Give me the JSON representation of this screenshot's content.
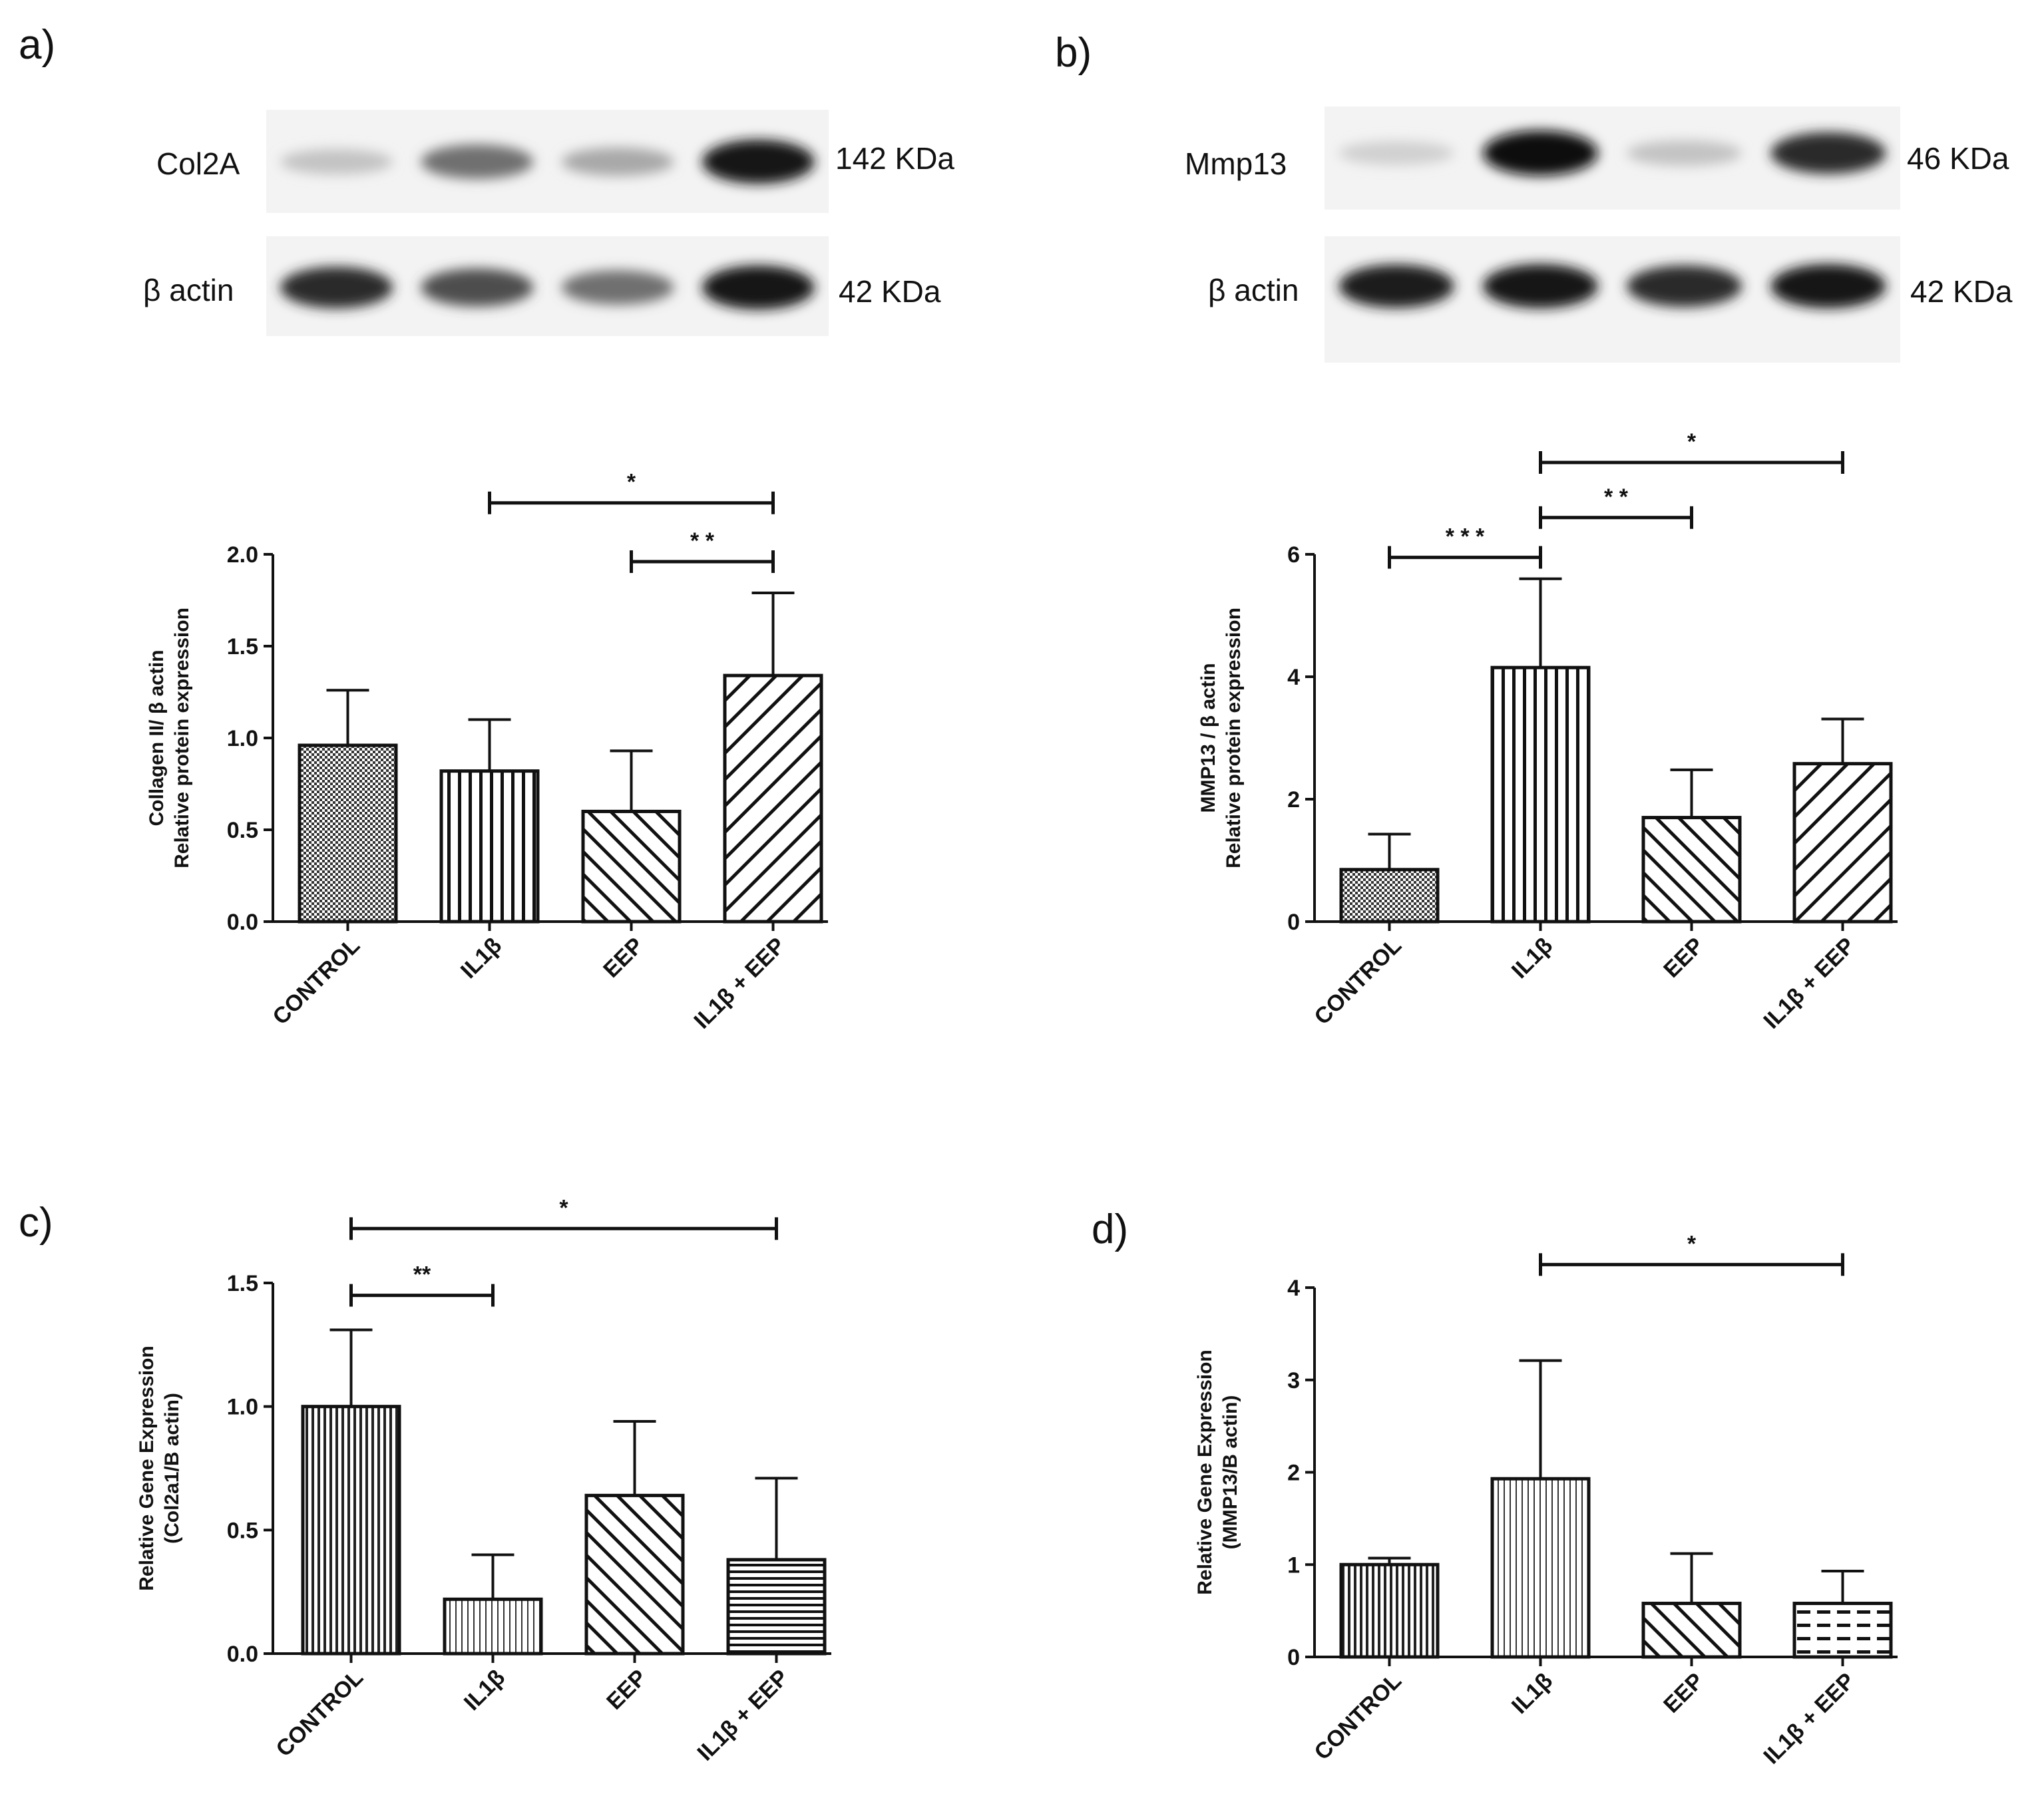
{
  "panels": {
    "a": {
      "letter": "a)"
    },
    "b": {
      "letter": "b)"
    },
    "c": {
      "letter": "c)"
    },
    "d": {
      "letter": "d)"
    }
  },
  "blots": {
    "a": {
      "rows": [
        {
          "label": "Col2A",
          "kda": "142 KDa",
          "intensities": [
            0.18,
            0.55,
            0.3,
            0.95
          ]
        },
        {
          "label": "β actin",
          "kda": "42 KDa",
          "intensities": [
            0.85,
            0.7,
            0.55,
            0.95
          ]
        }
      ]
    },
    "b": {
      "rows": [
        {
          "label": "Mmp13",
          "kda": "46 KDa",
          "intensities": [
            0.12,
            1.0,
            0.18,
            0.85
          ]
        },
        {
          "label": "β actin",
          "kda": "42 KDa",
          "intensities": [
            0.92,
            0.95,
            0.85,
            0.95
          ]
        }
      ]
    }
  },
  "chart_data": [
    {
      "panel": "a",
      "type": "bar",
      "categories": [
        "CONTROL",
        "IL1β",
        "EEP",
        "IL1β + EEP"
      ],
      "values": [
        0.96,
        0.82,
        0.6,
        1.34
      ],
      "errors": [
        0.3,
        0.28,
        0.33,
        0.45
      ],
      "patterns": [
        "checker",
        "vertical",
        "diag-right",
        "diag-left"
      ],
      "ylabel_lines": [
        "Collagen II/ β actin",
        "Relative protein expression"
      ],
      "ylim": [
        0,
        2.0
      ],
      "yticks": [
        0.0,
        0.5,
        1.0,
        1.5,
        2.0
      ],
      "tick_labels": [
        "0.0",
        "0.5",
        "1.0",
        "1.5",
        "2.0"
      ],
      "significance": [
        {
          "from": 1,
          "to": 3,
          "label": "*",
          "y": 2.28
        },
        {
          "from": 2,
          "to": 3,
          "label": "* *",
          "y": 1.96
        }
      ]
    },
    {
      "panel": "b",
      "type": "bar",
      "categories": [
        "CONTROL",
        "IL1β",
        "EEP",
        "IL1β + EEP"
      ],
      "values": [
        0.85,
        4.15,
        1.7,
        2.58
      ],
      "errors": [
        0.58,
        1.45,
        0.78,
        0.73
      ],
      "patterns": [
        "checker",
        "vertical",
        "diag-right",
        "diag-left"
      ],
      "ylabel_lines": [
        "MMP13 / β actin",
        "Relative protein expression"
      ],
      "ylim": [
        0,
        6
      ],
      "yticks": [
        0,
        2,
        4,
        6
      ],
      "tick_labels": [
        "0",
        "2",
        "4",
        "6"
      ],
      "significance": [
        {
          "from": 1,
          "to": 3,
          "label": "*",
          "y": 7.5
        },
        {
          "from": 1,
          "to": 2,
          "label": "* *",
          "y": 6.6
        },
        {
          "from": 0,
          "to": 1,
          "label": "* * *",
          "y": 5.95
        }
      ]
    },
    {
      "panel": "c",
      "type": "bar",
      "categories": [
        "CONTROL",
        "IL1β",
        "EEP",
        "IL1β + EEP"
      ],
      "values": [
        1.0,
        0.22,
        0.64,
        0.38
      ],
      "errors": [
        0.31,
        0.18,
        0.3,
        0.33
      ],
      "patterns": [
        "dense-vertical",
        "fine-vertical",
        "diag-right",
        "horizontal"
      ],
      "ylabel_lines": [
        "Relative Gene Expression",
        "(Col2a1/B actin)"
      ],
      "ylim": [
        0,
        1.5
      ],
      "yticks": [
        0.0,
        0.5,
        1.0,
        1.5
      ],
      "tick_labels": [
        "0.0",
        "0.5",
        "1.0",
        "1.5"
      ],
      "significance": [
        {
          "from": 0,
          "to": 3,
          "label": "*",
          "y": 1.72
        },
        {
          "from": 0,
          "to": 1,
          "label": "**",
          "y": 1.45
        }
      ]
    },
    {
      "panel": "d",
      "type": "bar",
      "categories": [
        "CONTROL",
        "IL1β",
        "EEP",
        "IL1β + EEP"
      ],
      "values": [
        1.0,
        1.93,
        0.58,
        0.58
      ],
      "errors": [
        0.07,
        1.28,
        0.54,
        0.35
      ],
      "patterns": [
        "dense-vertical",
        "fine-vertical",
        "diag-right",
        "dashed-horizontal"
      ],
      "ylabel_lines": [
        "Relative Gene Expression",
        "(MMP13/B actin)"
      ],
      "ylim": [
        0,
        4
      ],
      "yticks": [
        0,
        1,
        2,
        3,
        4
      ],
      "tick_labels": [
        "0",
        "1",
        "2",
        "3",
        "4"
      ],
      "significance": [
        {
          "from": 1,
          "to": 3,
          "label": "*",
          "y": 4.25
        }
      ]
    }
  ]
}
